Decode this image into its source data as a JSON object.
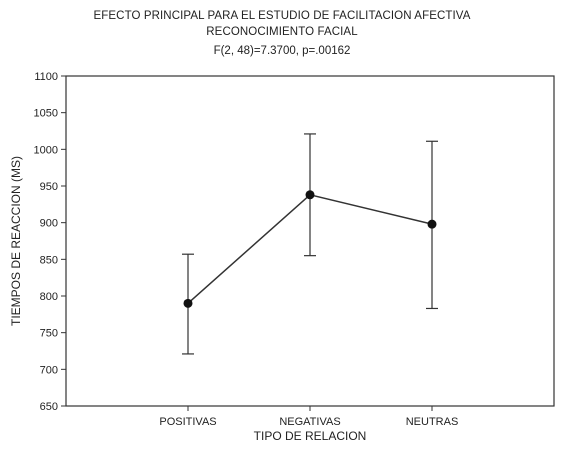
{
  "chart_data": {
    "type": "line",
    "title": "EFECTO PRINCIPAL PARA EL ESTUDIO DE FACILITACION AFECTIVA",
    "title2": "RECONOCIMIENTO FACIAL",
    "subtitle": "F(2, 48)=7.3700, p=.00162",
    "xlabel": "TIPO DE RELACION",
    "ylabel": "TIEMPOS DE REACCION (MS)",
    "categories": [
      "POSITIVAS",
      "NEGATIVAS",
      "NEUTRAS"
    ],
    "series": [
      {
        "values": [
          790,
          938,
          898
        ],
        "error_low": [
          721,
          855,
          783
        ],
        "error_high": [
          857,
          1021,
          1011
        ]
      }
    ],
    "ylim": [
      650,
      1100
    ],
    "yticks": [
      650,
      700,
      750,
      800,
      850,
      900,
      950,
      1000,
      1050,
      1100
    ],
    "grid": false,
    "colors": {
      "line": "#333333",
      "marker": "#111111",
      "axis": "#333333"
    }
  }
}
